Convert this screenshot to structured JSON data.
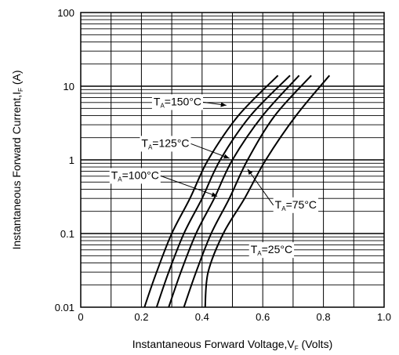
{
  "chart_data": {
    "type": "line",
    "xlabel": {
      "main": "Instantaneous Forward Voltage,V",
      "sub": "F",
      "tail": " (Volts)"
    },
    "ylabel": {
      "main": "Instantaneous Forward Current,I",
      "sub": "F",
      "tail": " (A)"
    },
    "x_scale": "linear",
    "y_scale": "log",
    "xlim": [
      0,
      1.0
    ],
    "ylim": [
      0.01,
      100
    ],
    "x_ticks": [
      "0",
      "0.2",
      "0.4",
      "0.6",
      "0.8",
      "1.0"
    ],
    "y_ticks": [
      "0.01",
      "0.1",
      "1",
      "10",
      "100"
    ],
    "grid": true,
    "series": [
      {
        "name": "T_A=150°C",
        "label_pre": "T",
        "label_sub": "A",
        "label_post": "=150°C",
        "points": [
          [
            0.21,
            0.01
          ],
          [
            0.25,
            0.03
          ],
          [
            0.3,
            0.1
          ],
          [
            0.36,
            0.3
          ],
          [
            0.42,
            1
          ],
          [
            0.52,
            4
          ],
          [
            0.65,
            14
          ]
        ]
      },
      {
        "name": "T_A=125°C",
        "label_pre": "T",
        "label_sub": "A",
        "label_post": "=125°C",
        "points": [
          [
            0.25,
            0.01
          ],
          [
            0.29,
            0.03
          ],
          [
            0.34,
            0.1
          ],
          [
            0.4,
            0.3
          ],
          [
            0.46,
            1
          ],
          [
            0.56,
            4
          ],
          [
            0.69,
            14
          ]
        ]
      },
      {
        "name": "T_A=100°C",
        "label_pre": "T",
        "label_sub": "A",
        "label_post": "=100°C",
        "points": [
          [
            0.29,
            0.01
          ],
          [
            0.33,
            0.03
          ],
          [
            0.38,
            0.1
          ],
          [
            0.44,
            0.3
          ],
          [
            0.5,
            1
          ],
          [
            0.6,
            4
          ],
          [
            0.72,
            14
          ]
        ]
      },
      {
        "name": "T_A=75°C",
        "label_pre": "T",
        "label_sub": "A",
        "label_post": "=75°C",
        "points": [
          [
            0.34,
            0.01
          ],
          [
            0.38,
            0.03
          ],
          [
            0.43,
            0.1
          ],
          [
            0.49,
            0.3
          ],
          [
            0.55,
            1
          ],
          [
            0.64,
            4
          ],
          [
            0.76,
            14
          ]
        ]
      },
      {
        "name": "T_A=25°C",
        "label_pre": "T",
        "label_sub": "A",
        "label_post": "=25°C",
        "points": [
          [
            0.41,
            0.01
          ],
          [
            0.42,
            0.03
          ],
          [
            0.47,
            0.1
          ],
          [
            0.54,
            0.3
          ],
          [
            0.61,
            1
          ],
          [
            0.71,
            4
          ],
          [
            0.82,
            14
          ]
        ]
      }
    ],
    "annotations": [
      {
        "series": "T_A=150°C",
        "text_x": 0.24,
        "text_y": 5.5,
        "arrow_to_x": 0.48,
        "arrow_to_y": 5.5
      },
      {
        "series": "T_A=125°C",
        "text_x": 0.2,
        "text_y": 1.5,
        "arrow_to_x": 0.49,
        "arrow_to_y": 1.05
      },
      {
        "series": "T_A=100°C",
        "text_x": 0.1,
        "text_y": 0.55,
        "arrow_to_x": 0.45,
        "arrow_to_y": 0.32
      },
      {
        "series": "T_A=75°C",
        "text_x": 0.64,
        "text_y": 0.22,
        "arrow_to_x": 0.55,
        "arrow_to_y": 0.75
      },
      {
        "series": "T_A=25°C",
        "text_x": 0.56,
        "text_y": 0.054,
        "arrow_to_x": 0,
        "arrow_to_y": 0
      }
    ]
  }
}
